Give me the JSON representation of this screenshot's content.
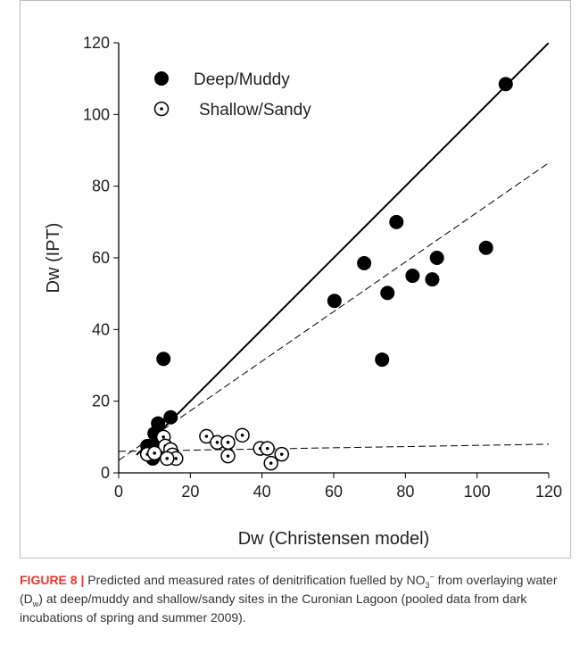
{
  "chart_data": {
    "type": "scatter",
    "xlabel": "Dw (Christensen model)",
    "ylabel": "Dw (IPT)",
    "xlim": [
      0,
      120
    ],
    "ylim": [
      0,
      120
    ],
    "xticks": [
      0,
      20,
      40,
      60,
      80,
      100,
      120
    ],
    "yticks": [
      0,
      20,
      40,
      60,
      80,
      100,
      120
    ],
    "grid": false,
    "legend": "upper left",
    "series": [
      {
        "name": "Deep/Muddy",
        "color": "#000000",
        "marker": "filled",
        "x": [
          108,
          77.5,
          68.5,
          60.2,
          75,
          82,
          88.8,
          87.5,
          102.5,
          73.5,
          12.5,
          14.5,
          11,
          10,
          8,
          9,
          9.5,
          10.5
        ],
        "values": [
          108.5,
          70,
          58.5,
          48,
          50.2,
          55,
          60,
          54,
          62.8,
          31.6,
          31.8,
          15.5,
          13.8,
          11,
          7.5,
          5.5,
          4,
          8
        ]
      },
      {
        "name": "Shallow/Sandy",
        "color": "#000000",
        "marker": "dotted",
        "x": [
          12.5,
          13,
          14.5,
          15,
          16,
          13.5,
          8,
          10,
          24.5,
          27.5,
          30.5,
          30.5,
          34.5,
          39.5,
          41.5,
          42.5,
          45.5
        ],
        "values": [
          10,
          7.5,
          6.5,
          5,
          4,
          4,
          5.2,
          5.5,
          10.2,
          8.5,
          8.5,
          4.7,
          10.5,
          6.8,
          6.8,
          2.7,
          5.2
        ]
      }
    ],
    "lines": [
      {
        "style": "solid",
        "x": [
          5,
          120
        ],
        "y": [
          5,
          120
        ]
      },
      {
        "style": "dashed",
        "x": [
          0,
          120
        ],
        "y": [
          3.5,
          86.5
        ]
      },
      {
        "style": "dashed",
        "x": [
          0,
          120
        ],
        "y": [
          6,
          8
        ]
      }
    ]
  },
  "caption": {
    "label": "FIGURE 8 |",
    "parts": [
      " Predicted and measured rates of denitrification fuelled by NO",
      "3",
      "−",
      " from overlaying water (D",
      "w",
      ") at deep/muddy and shallow/sandy sites in the Curonian Lagoon (pooled data from dark incubations of spring and summer 2009)."
    ]
  }
}
